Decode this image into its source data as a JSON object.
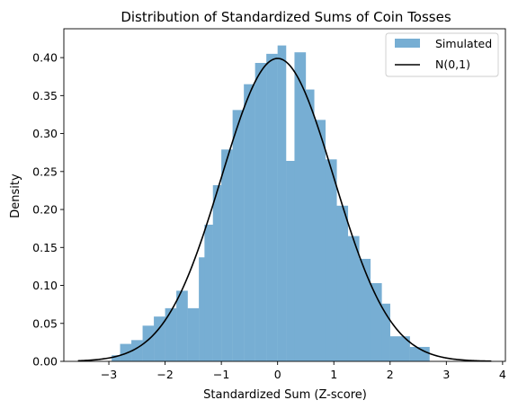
{
  "chart_data": {
    "type": "bar",
    "title": "Distribution of Standardized Sums of Coin Tosses",
    "xlabel": "Standardized Sum (Z-score)",
    "ylabel": "Density",
    "xlim": [
      -3.8,
      4.05
    ],
    "ylim": [
      0,
      0.438
    ],
    "xticks": [
      -3,
      -2,
      -1,
      0,
      1,
      2,
      3,
      4
    ],
    "xtick_labels": [
      "−3",
      "−2",
      "−1",
      "0",
      "1",
      "2",
      "3",
      "4"
    ],
    "yticks": [
      0.0,
      0.05,
      0.1,
      0.15,
      0.2,
      0.25,
      0.3,
      0.35,
      0.4
    ],
    "ytick_labels": [
      "0.00",
      "0.05",
      "0.10",
      "0.15",
      "0.20",
      "0.25",
      "0.30",
      "0.35",
      "0.40"
    ],
    "legend_position": "top-right",
    "series": [
      {
        "name": "Simulated",
        "kind": "histogram",
        "color": "#77aed3",
        "bins": [
          {
            "x0": -2.95,
            "x1": -2.8,
            "y": 0.008
          },
          {
            "x0": -2.8,
            "x1": -2.6,
            "y": 0.023
          },
          {
            "x0": -2.6,
            "x1": -2.4,
            "y": 0.028
          },
          {
            "x0": -2.4,
            "x1": -2.2,
            "y": 0.047
          },
          {
            "x0": -2.2,
            "x1": -2.0,
            "y": 0.059
          },
          {
            "x0": -2.0,
            "x1": -1.8,
            "y": 0.07
          },
          {
            "x0": -1.8,
            "x1": -1.6,
            "y": 0.093
          },
          {
            "x0": -1.6,
            "x1": -1.4,
            "y": 0.07
          },
          {
            "x0": -1.4,
            "x1": -1.3,
            "y": 0.137
          },
          {
            "x0": -1.3,
            "x1": -1.15,
            "y": 0.18
          },
          {
            "x0": -1.15,
            "x1": -1.0,
            "y": 0.232
          },
          {
            "x0": -1.0,
            "x1": -0.8,
            "y": 0.279
          },
          {
            "x0": -0.8,
            "x1": -0.6,
            "y": 0.331
          },
          {
            "x0": -0.6,
            "x1": -0.4,
            "y": 0.365
          },
          {
            "x0": -0.4,
            "x1": -0.2,
            "y": 0.393
          },
          {
            "x0": -0.2,
            "x1": 0.0,
            "y": 0.405
          },
          {
            "x0": 0.0,
            "x1": 0.15,
            "y": 0.416
          },
          {
            "x0": 0.15,
            "x1": 0.3,
            "y": 0.264
          },
          {
            "x0": 0.3,
            "x1": 0.5,
            "y": 0.407
          },
          {
            "x0": 0.5,
            "x1": 0.65,
            "y": 0.358
          },
          {
            "x0": 0.65,
            "x1": 0.85,
            "y": 0.318
          },
          {
            "x0": 0.85,
            "x1": 1.05,
            "y": 0.266
          },
          {
            "x0": 1.05,
            "x1": 1.25,
            "y": 0.205
          },
          {
            "x0": 1.25,
            "x1": 1.45,
            "y": 0.165
          },
          {
            "x0": 1.45,
            "x1": 1.65,
            "y": 0.135
          },
          {
            "x0": 1.65,
            "x1": 1.85,
            "y": 0.103
          },
          {
            "x0": 1.85,
            "x1": 2.0,
            "y": 0.076
          },
          {
            "x0": 2.0,
            "x1": 2.35,
            "y": 0.033
          },
          {
            "x0": 2.35,
            "x1": 2.7,
            "y": 0.019
          }
        ]
      },
      {
        "name": "N(0,1)",
        "kind": "line",
        "color": "#000000",
        "function": "normal_pdf",
        "mean": 0,
        "std": 1,
        "x_range": [
          -3.55,
          3.8
        ]
      }
    ]
  }
}
